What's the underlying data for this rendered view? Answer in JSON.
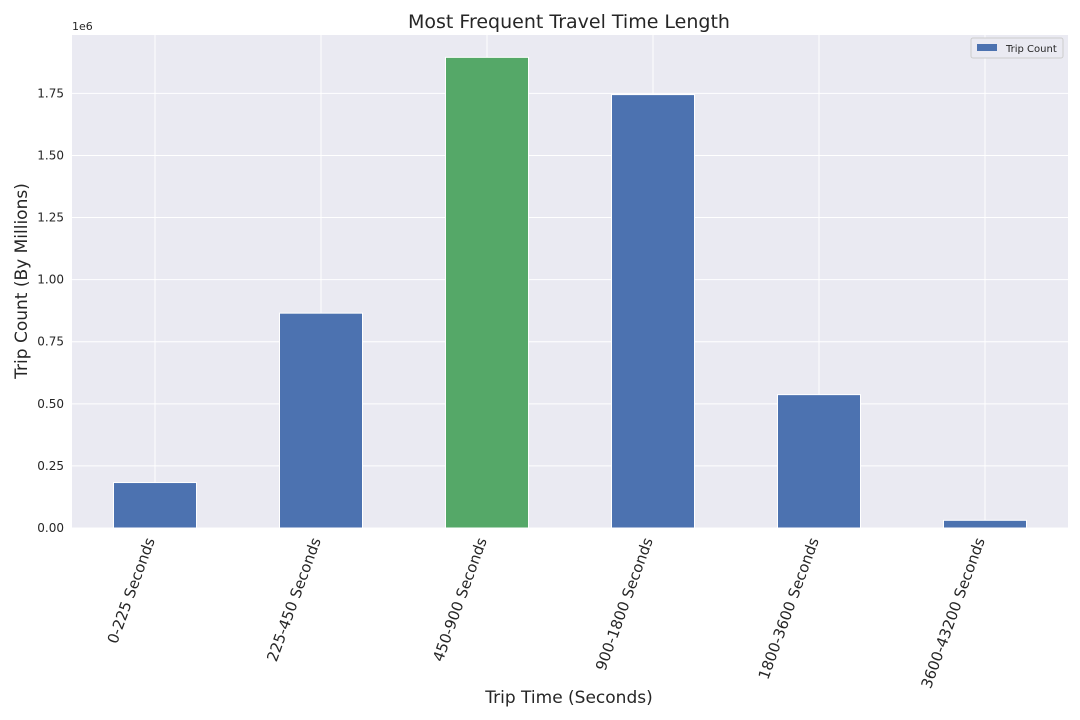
{
  "chart_data": {
    "type": "bar",
    "title": "Most Frequent Travel Time Length",
    "xlabel": "Trip Time (Seconds)",
    "ylabel": "Trip Count (By Millions)",
    "scale_label": "1e6",
    "categories": [
      "0-225 Seconds",
      "225-450 Seconds",
      "450-900 Seconds",
      "900-1800 Seconds",
      "1800-3600 Seconds",
      "3600-43200 Seconds"
    ],
    "series": [
      {
        "name": "Trip Count",
        "values": [
          183000,
          865000,
          1895000,
          1745000,
          537000,
          31000
        ]
      }
    ],
    "highlight_index": 2,
    "ylim": [
      0,
      1985000
    ],
    "yticks": [
      0,
      250000,
      500000,
      750000,
      1000000,
      1250000,
      1500000,
      1750000
    ],
    "ytick_labels": [
      "0.00",
      "0.25",
      "0.50",
      "0.75",
      "1.00",
      "1.25",
      "1.50",
      "1.75"
    ],
    "x_tick_rotation_deg": 70,
    "grid": true,
    "legend_position": "top-right",
    "colors": {
      "bar": "#4c72b0",
      "highlight": "#55a868",
      "plot_background": "#eaeaf2",
      "grid": "#ffffff",
      "text": "#262626"
    }
  }
}
